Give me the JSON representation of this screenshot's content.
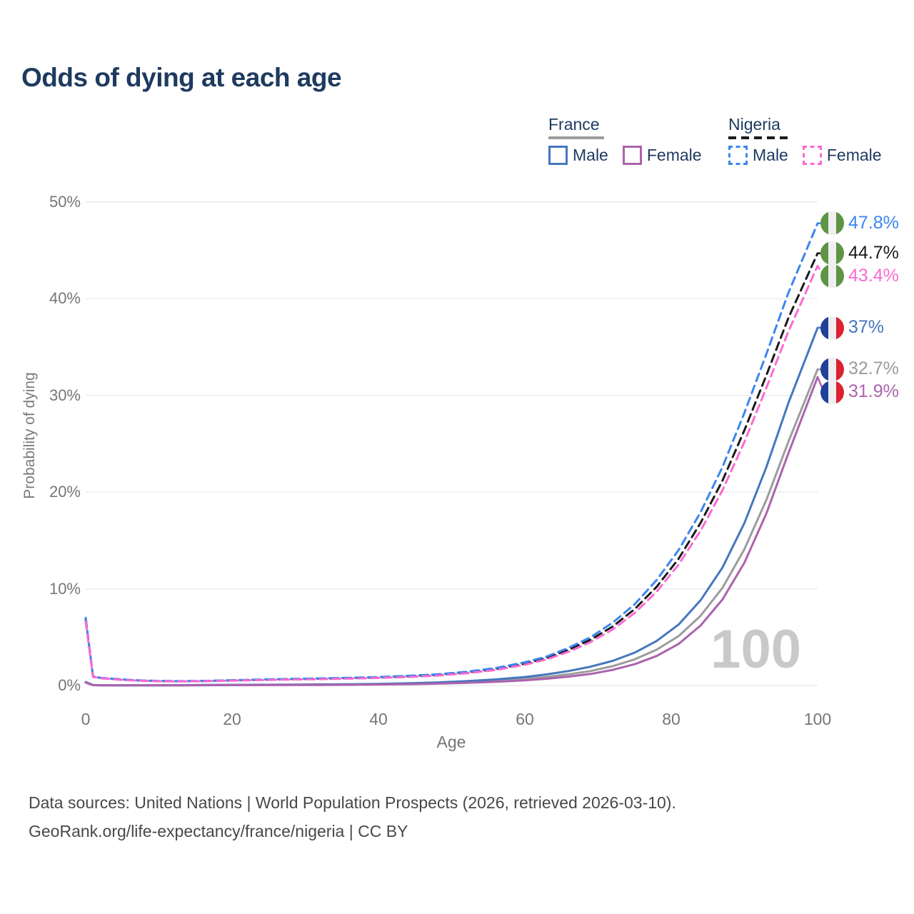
{
  "title": "Odds of dying at each age",
  "watermark_age": "100",
  "legend": {
    "groups": [
      {
        "name": "France",
        "style": "solid",
        "line_color": "#9c9c9c",
        "items": [
          {
            "label": "Male",
            "color": "#4577bd"
          },
          {
            "label": "Female",
            "color": "#ab63ae"
          }
        ]
      },
      {
        "name": "Nigeria",
        "style": "dashed",
        "line_color": "#1b1b1b",
        "items": [
          {
            "label": "Male",
            "color": "#3c86f0"
          },
          {
            "label": "Female",
            "color": "#fb6ad2"
          }
        ]
      }
    ]
  },
  "flags": {
    "nigeria": [
      "#5e9444",
      "#efefef",
      "#5e9444"
    ],
    "france": [
      "#20409a",
      "#efefef",
      "#dc2130"
    ]
  },
  "footer": {
    "line1": "Data sources: United Nations | World Population Prospects (2026, retrieved 2026-03-10).",
    "line2": "GeoRank.org/life-expectancy/france/nigeria | CC BY"
  },
  "chart_data": {
    "type": "line",
    "title": "Odds of dying at each age",
    "xlabel": "Age",
    "ylabel": "Probability of dying",
    "xlim": [
      0,
      100
    ],
    "ylim": [
      0,
      50
    ],
    "x_ticks": [
      0,
      20,
      40,
      60,
      80,
      100
    ],
    "y_tick_values": [
      0,
      10,
      20,
      30,
      40,
      50
    ],
    "y_tick_labels": [
      "0%",
      "10%",
      "20%",
      "30%",
      "40%",
      "50%"
    ],
    "grid": "horizontal",
    "x": [
      0,
      1,
      2,
      4,
      6,
      8,
      10,
      13,
      16,
      20,
      24,
      28,
      32,
      36,
      40,
      44,
      48,
      52,
      56,
      60,
      63,
      66,
      69,
      72,
      75,
      78,
      81,
      84,
      87,
      90,
      93,
      96,
      100
    ],
    "series": [
      {
        "name": "France Both sexes",
        "country": "France",
        "sex": "both",
        "style": "solid",
        "color": "#9c9c9c",
        "end_label": "32.7%",
        "end_value": 32.7,
        "flag": "france",
        "values": [
          0.33,
          0.04,
          0.025,
          0.018,
          0.015,
          0.015,
          0.016,
          0.022,
          0.035,
          0.05,
          0.06,
          0.07,
          0.08,
          0.1,
          0.13,
          0.18,
          0.25,
          0.35,
          0.49,
          0.68,
          0.89,
          1.16,
          1.5,
          2.0,
          2.7,
          3.7,
          5.1,
          7.2,
          10.1,
          14.1,
          19.2,
          25.2,
          32.7
        ]
      },
      {
        "name": "France Male",
        "country": "France",
        "sex": "male",
        "style": "solid",
        "color": "#4577bd",
        "end_label": "37%",
        "end_value": 37.0,
        "flag": "france",
        "values": [
          0.36,
          0.05,
          0.03,
          0.02,
          0.02,
          0.02,
          0.02,
          0.03,
          0.05,
          0.07,
          0.08,
          0.09,
          0.11,
          0.13,
          0.17,
          0.23,
          0.32,
          0.45,
          0.63,
          0.88,
          1.15,
          1.5,
          1.95,
          2.55,
          3.4,
          4.6,
          6.3,
          8.8,
          12.2,
          16.8,
          22.6,
          29.2,
          37.0
        ]
      },
      {
        "name": "France Female",
        "country": "France",
        "sex": "female",
        "style": "solid",
        "color": "#ab63ae",
        "end_label": "31.9%",
        "end_value": 31.9,
        "flag": "france",
        "values": [
          0.3,
          0.035,
          0.02,
          0.015,
          0.012,
          0.012,
          0.013,
          0.018,
          0.026,
          0.035,
          0.042,
          0.05,
          0.06,
          0.075,
          0.1,
          0.135,
          0.19,
          0.27,
          0.38,
          0.53,
          0.7,
          0.92,
          1.2,
          1.62,
          2.2,
          3.05,
          4.3,
          6.2,
          8.9,
          12.7,
          17.8,
          24.0,
          31.9
        ]
      },
      {
        "name": "Nigeria Both sexes",
        "country": "Nigeria",
        "sex": "both",
        "style": "dashed",
        "color": "#1b1b1b",
        "end_label": "44.7%",
        "end_value": 44.7,
        "flag": "nigeria",
        "values": [
          6.85,
          0.92,
          0.78,
          0.66,
          0.56,
          0.5,
          0.46,
          0.44,
          0.46,
          0.53,
          0.59,
          0.65,
          0.7,
          0.76,
          0.83,
          0.94,
          1.09,
          1.34,
          1.7,
          2.25,
          2.85,
          3.7,
          4.75,
          6.1,
          7.9,
          10.2,
          13.1,
          16.8,
          21.2,
          26.4,
          32.1,
          38.0,
          44.7
        ]
      },
      {
        "name": "Nigeria Male",
        "country": "Nigeria",
        "sex": "male",
        "style": "dashed",
        "color": "#3c86f0",
        "end_label": "47.8%",
        "end_value": 47.8,
        "flag": "nigeria",
        "values": [
          7.0,
          0.95,
          0.8,
          0.68,
          0.58,
          0.51,
          0.47,
          0.45,
          0.47,
          0.55,
          0.62,
          0.68,
          0.74,
          0.8,
          0.88,
          1.0,
          1.15,
          1.42,
          1.8,
          2.4,
          3.0,
          3.9,
          5.0,
          6.5,
          8.4,
          10.9,
          14.0,
          17.9,
          22.6,
          28.2,
          34.3,
          40.6,
          47.8
        ]
      },
      {
        "name": "Nigeria Female",
        "country": "Nigeria",
        "sex": "female",
        "style": "dashed",
        "color": "#fb6ad2",
        "end_label": "43.4%",
        "end_value": 43.4,
        "flag": "nigeria",
        "values": [
          6.6,
          0.88,
          0.75,
          0.63,
          0.54,
          0.48,
          0.44,
          0.42,
          0.44,
          0.5,
          0.56,
          0.61,
          0.66,
          0.71,
          0.78,
          0.88,
          1.02,
          1.26,
          1.6,
          2.15,
          2.7,
          3.5,
          4.5,
          5.8,
          7.5,
          9.7,
          12.5,
          16.0,
          20.2,
          25.2,
          30.8,
          36.6,
          43.4
        ]
      }
    ]
  }
}
